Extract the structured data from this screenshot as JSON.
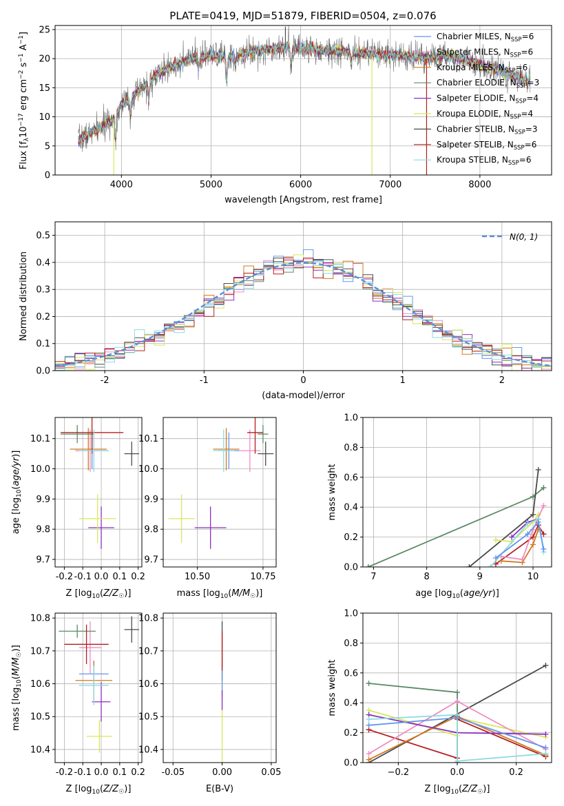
{
  "figure": {
    "title": "PLATE=0419, MJD=51879, FIBERID=0504, z=0.076"
  },
  "colors": {
    "Chabrier MILES": "#6495ed",
    "Salpeter MILES": "#f08cc0",
    "Kroupa MILES": "#d2781e",
    "Chabrier ELODIE": "#5a8a64",
    "Salpeter ELODIE": "#8b2fbf",
    "Kroupa ELODIE": "#d8e85a",
    "Chabrier STELIB": "#4a4a4a",
    "Salpeter STELIB": "#b41e1e",
    "Kroupa STELIB": "#8adbe0",
    "normal": "#5b8fd8"
  },
  "chart_data": [
    {
      "id": "spectrum",
      "type": "line",
      "xlabel": "wavelength [Angstrom, rest frame]",
      "ylabel": "Flux [f_λ 10^-17 erg cm^-2 s^-1 A^-1]",
      "xlim": [
        3260,
        8800
      ],
      "ylim": [
        0,
        25.7
      ],
      "xticks": [
        4000,
        5000,
        6000,
        7000,
        8000
      ],
      "yticks": [
        0,
        5,
        10,
        15,
        20,
        25
      ],
      "legend_position": "right",
      "legend": [
        {
          "model": "Chabrier MILES",
          "n": "6"
        },
        {
          "model": "Salpeter MILES",
          "n": "6"
        },
        {
          "model": "Kroupa MILES",
          "n": "6"
        },
        {
          "model": "Chabrier ELODIE",
          "n": "3"
        },
        {
          "model": "Salpeter ELODIE",
          "n": "4"
        },
        {
          "model": "Kroupa ELODIE",
          "n": "4"
        },
        {
          "model": "Chabrier STELIB",
          "n": "3"
        },
        {
          "model": "Salpeter STELIB",
          "n": "6"
        },
        {
          "model": "Kroupa STELIB",
          "n": "6"
        }
      ],
      "legend_prefix": ", N",
      "legend_sub": "SSP",
      "continuum_wavelength": [
        3520,
        3700,
        3900,
        4000,
        4200,
        4400,
        4600,
        4800,
        5000,
        5200,
        5400,
        5600,
        5800,
        6000,
        6200,
        6400,
        6600,
        6800,
        7000,
        7200,
        7400,
        7600,
        7800,
        8000,
        8200,
        8400,
        8560
      ],
      "continuum_flux": [
        6.0,
        7.5,
        9.5,
        12.0,
        14.5,
        17.2,
        19.0,
        20.0,
        20.5,
        20.3,
        21.0,
        21.5,
        22.0,
        21.8,
        21.5,
        21.3,
        21.0,
        20.8,
        20.5,
        20.5,
        20.0,
        20.5,
        20.0,
        19.0,
        18.0,
        17.0,
        16.0
      ],
      "absorption_lines": [
        {
          "wavelength": 3934,
          "depth": 4
        },
        {
          "wavelength": 4101,
          "depth": 3
        },
        {
          "wavelength": 4305,
          "depth": 3
        },
        {
          "wavelength": 4861,
          "depth": 2
        },
        {
          "wavelength": 5175,
          "depth": 4
        },
        {
          "wavelength": 5270,
          "depth": 2
        },
        {
          "wavelength": 5893,
          "depth": 3
        },
        {
          "wavelength": 6563,
          "depth": 2
        }
      ],
      "artifacts": [
        {
          "wavelength": 3915,
          "low": 0.0,
          "color": "Kroupa ELODIE"
        },
        {
          "wavelength": 6795,
          "low": 0.0,
          "color": "Kroupa ELODIE"
        },
        {
          "wavelength": 7405,
          "low": 0.0,
          "color": "Salpeter STELIB"
        },
        {
          "wavelength": 5830,
          "high": 25.5,
          "color": "Chabrier STELIB"
        }
      ]
    },
    {
      "id": "residuals",
      "type": "histogram",
      "xlabel": "(data-model)/error",
      "ylabel": "Normed distribution",
      "xlim": [
        -2.5,
        2.5
      ],
      "ylim": [
        0,
        0.55
      ],
      "xticks": [
        -2,
        -1,
        0,
        1,
        2
      ],
      "yticks": [
        0.0,
        0.1,
        0.2,
        0.3,
        0.4,
        0.5
      ],
      "bin_width": 0.1,
      "legend_position": "top-right",
      "normal_label": "N(0, 1)",
      "series_seed_note": "9 step histograms around N(0,1)"
    },
    {
      "id": "age_vs_Z",
      "type": "errorbar",
      "xlabel": "Z [log10(Z/Z_sun)]",
      "ylabel": "age [log10(age/yr)]",
      "xlim": [
        -0.25,
        0.22
      ],
      "ylim": [
        9.675,
        10.17
      ],
      "xticks": [
        -0.2,
        -0.1,
        0.0,
        0.1,
        0.2
      ],
      "yticks": [
        9.7,
        9.8,
        9.9,
        10.0,
        10.1
      ],
      "points": [
        {
          "model": "Chabrier MILES",
          "x": -0.05,
          "xerr": 0.09,
          "y": 10.06,
          "yerr": 0.06
        },
        {
          "model": "Salpeter MILES",
          "x": -0.06,
          "xerr": 0.08,
          "y": 10.06,
          "yerr": 0.07
        },
        {
          "model": "Kroupa MILES",
          "x": -0.07,
          "xerr": 0.1,
          "y": 10.065,
          "yerr": 0.07
        },
        {
          "model": "Chabrier ELODIE",
          "x": -0.13,
          "xerr": 0.09,
          "y": 10.115,
          "yerr": 0.03
        },
        {
          "model": "Salpeter ELODIE",
          "x": 0.0,
          "xerr": 0.07,
          "y": 9.805,
          "yerr": 0.07
        },
        {
          "model": "Kroupa ELODIE",
          "x": -0.02,
          "xerr": 0.1,
          "y": 9.835,
          "yerr": 0.08
        },
        {
          "model": "Chabrier STELIB",
          "x": 0.165,
          "xerr": 0.04,
          "y": 10.05,
          "yerr": 0.04
        },
        {
          "model": "Salpeter STELIB",
          "x": -0.05,
          "xerr": 0.17,
          "y": 10.12,
          "yerr": 0.07
        },
        {
          "model": "Kroupa STELIB",
          "x": -0.04,
          "xerr": 0.08,
          "y": 10.06,
          "yerr": 0.07
        }
      ]
    },
    {
      "id": "age_vs_mass",
      "type": "errorbar",
      "xlabel": "mass [log10(M/M_sun)]",
      "ylabel": "",
      "xlim": [
        10.37,
        10.8
      ],
      "ylim": [
        9.675,
        10.17
      ],
      "xticks": [
        10.5,
        10.75
      ],
      "yticks": [
        9.7,
        9.8,
        9.9,
        10.0,
        10.1
      ],
      "points": [
        {
          "model": "Chabrier MILES",
          "x": 10.62,
          "xerr": 0.04,
          "y": 10.06,
          "yerr": 0.06
        },
        {
          "model": "Salpeter MILES",
          "x": 10.7,
          "xerr": 0.04,
          "y": 10.06,
          "yerr": 0.07
        },
        {
          "model": "Kroupa MILES",
          "x": 10.61,
          "xerr": 0.05,
          "y": 10.065,
          "yerr": 0.07
        },
        {
          "model": "Chabrier ELODIE",
          "x": 10.75,
          "xerr": 0.02,
          "y": 10.115,
          "yerr": 0.03
        },
        {
          "model": "Salpeter ELODIE",
          "x": 10.55,
          "xerr": 0.06,
          "y": 9.805,
          "yerr": 0.07
        },
        {
          "model": "Kroupa ELODIE",
          "x": 10.44,
          "xerr": 0.05,
          "y": 9.835,
          "yerr": 0.08
        },
        {
          "model": "Chabrier STELIB",
          "x": 10.76,
          "xerr": 0.03,
          "y": 10.05,
          "yerr": 0.04
        },
        {
          "model": "Salpeter STELIB",
          "x": 10.72,
          "xerr": 0.03,
          "y": 10.12,
          "yerr": 0.07
        },
        {
          "model": "Kroupa STELIB",
          "x": 10.6,
          "xerr": 0.04,
          "y": 10.06,
          "yerr": 0.07
        }
      ]
    },
    {
      "id": "weight_vs_age",
      "type": "line",
      "xlabel": "age [log10(age/yr)]",
      "ylabel": "mass weight",
      "xlim": [
        6.8,
        10.35
      ],
      "ylim": [
        0,
        1.0
      ],
      "xticks": [
        7,
        8,
        9,
        10
      ],
      "yticks": [
        0.0,
        0.2,
        0.4,
        0.6,
        0.8,
        1.0
      ],
      "series": [
        {
          "model": "Chabrier ELODIE",
          "x": [
            6.9,
            10.0,
            10.2
          ],
          "y": [
            0.0,
            0.47,
            0.53
          ]
        },
        {
          "model": "Chabrier STELIB",
          "x": [
            8.8,
            10.0,
            10.1
          ],
          "y": [
            0.0,
            0.35,
            0.65
          ]
        },
        {
          "model": "Salpeter STELIB",
          "x": [
            9.3,
            10.0,
            10.1,
            10.2
          ],
          "y": [
            0.02,
            0.2,
            0.28,
            0.22
          ]
        },
        {
          "model": "Kroupa ELODIE",
          "x": [
            9.3,
            9.6,
            10.0,
            10.1
          ],
          "y": [
            0.18,
            0.17,
            0.3,
            0.35
          ]
        },
        {
          "model": "Kroupa MILES",
          "x": [
            9.4,
            9.8,
            10.0,
            10.1
          ],
          "y": [
            0.04,
            0.03,
            0.15,
            0.25
          ]
        },
        {
          "model": "Salpeter MILES",
          "x": [
            9.4,
            9.8,
            10.0,
            10.2
          ],
          "y": [
            0.07,
            0.05,
            0.25,
            0.41
          ]
        },
        {
          "model": "Salpeter ELODIE",
          "x": [
            9.6,
            9.9,
            10.1
          ],
          "y": [
            0.2,
            0.3,
            0.32
          ]
        },
        {
          "model": "Kroupa STELIB",
          "x": [
            9.2,
            9.9,
            10.1,
            10.2
          ],
          "y": [
            0.0,
            0.29,
            0.32,
            0.1
          ]
        },
        {
          "model": "Chabrier MILES",
          "x": [
            9.3,
            9.9,
            10.1,
            10.2
          ],
          "y": [
            0.06,
            0.22,
            0.3,
            0.12
          ]
        }
      ]
    },
    {
      "id": "mass_vs_Z",
      "type": "errorbar",
      "xlabel": "Z [log10(Z/Z_sun)]",
      "ylabel": "mass [log10(M/M_sun)]",
      "xlim": [
        -0.25,
        0.22
      ],
      "ylim": [
        10.36,
        10.815
      ],
      "xticks": [
        -0.2,
        -0.1,
        0.0,
        0.1,
        0.2
      ],
      "yticks": [
        10.4,
        10.5,
        10.6,
        10.7,
        10.8
      ],
      "points": [
        {
          "model": "Chabrier MILES",
          "x": -0.04,
          "xerr": 0.08,
          "y": 10.63,
          "yerr": 0.04
        },
        {
          "model": "Salpeter MILES",
          "x": -0.06,
          "xerr": 0.06,
          "y": 10.71,
          "yerr": 0.08
        },
        {
          "model": "Kroupa MILES",
          "x": -0.04,
          "xerr": 0.1,
          "y": 10.61,
          "yerr": 0.06
        },
        {
          "model": "Chabrier ELODIE",
          "x": -0.13,
          "xerr": 0.1,
          "y": 10.76,
          "yerr": 0.02
        },
        {
          "model": "Salpeter ELODIE",
          "x": 0.0,
          "xerr": 0.05,
          "y": 10.545,
          "yerr": 0.06
        },
        {
          "model": "Kroupa ELODIE",
          "x": -0.01,
          "xerr": 0.07,
          "y": 10.44,
          "yerr": 0.05
        },
        {
          "model": "Chabrier STELIB",
          "x": 0.165,
          "xerr": 0.04,
          "y": 10.765,
          "yerr": 0.04
        },
        {
          "model": "Salpeter STELIB",
          "x": -0.08,
          "xerr": 0.12,
          "y": 10.72,
          "yerr": 0.06
        },
        {
          "model": "Kroupa STELIB",
          "x": -0.04,
          "xerr": 0.08,
          "y": 10.595,
          "yerr": 0.06
        }
      ]
    },
    {
      "id": "mass_vs_ebv",
      "type": "errorbar",
      "xlabel": "E(B-V)",
      "ylabel": "",
      "xlim": [
        -0.06,
        0.055
      ],
      "ylim": [
        10.36,
        10.815
      ],
      "xticks": [
        -0.05,
        0.0,
        0.05
      ],
      "yticks": [
        10.4,
        10.5,
        10.6,
        10.7,
        10.8
      ],
      "points": [
        {
          "model": "Kroupa ELODIE",
          "x": 0.0,
          "xerr": 0.0,
          "y": 10.5,
          "yerr": 0.14
        },
        {
          "model": "Chabrier STELIB",
          "x": 0.0,
          "xerr": 0.0,
          "y": 10.7,
          "yerr": 0.09
        },
        {
          "model": "Salpeter STELIB",
          "x": 0.0,
          "xerr": 0.0,
          "y": 10.7,
          "yerr": 0.06
        },
        {
          "model": "Chabrier MILES",
          "x": 0.0,
          "xerr": 0.0,
          "y": 10.6,
          "yerr": 0.04
        },
        {
          "model": "Salpeter ELODIE",
          "x": 0.0,
          "xerr": 0.0,
          "y": 10.55,
          "yerr": 0.03
        }
      ]
    },
    {
      "id": "weight_vs_Z",
      "type": "line",
      "xlabel": "Z [log10(Z/Z_sun)]",
      "ylabel": "mass weight",
      "xlim": [
        -0.32,
        0.32
      ],
      "ylim": [
        0,
        1.0
      ],
      "xticks": [
        -0.2,
        0.0,
        0.2
      ],
      "yticks": [
        0.0,
        0.2,
        0.4,
        0.6,
        0.8,
        1.0
      ],
      "series": [
        {
          "model": "Chabrier ELODIE",
          "x": [
            -0.3,
            0.0,
            0.0
          ],
          "y": [
            0.53,
            0.47,
            0.0
          ]
        },
        {
          "model": "Chabrier STELIB",
          "x": [
            -0.3,
            0.3
          ],
          "y": [
            0.0,
            0.65
          ]
        },
        {
          "model": "Salpeter STELIB",
          "x": [
            -0.3,
            0.0,
            0.0,
            0.3
          ],
          "y": [
            0.22,
            0.03,
            0.29,
            0.04
          ]
        },
        {
          "model": "Kroupa ELODIE",
          "x": [
            -0.3,
            0.0,
            0.0,
            0.3
          ],
          "y": [
            0.35,
            0.18,
            0.3,
            0.17
          ]
        },
        {
          "model": "Kroupa MILES",
          "x": [
            -0.3,
            0.0,
            0.3
          ],
          "y": [
            0.02,
            0.31,
            0.05
          ]
        },
        {
          "model": "Salpeter MILES",
          "x": [
            -0.3,
            0.0,
            0.3
          ],
          "y": [
            0.06,
            0.41,
            0.09
          ]
        },
        {
          "model": "Salpeter ELODIE",
          "x": [
            -0.3,
            0.0,
            0.3
          ],
          "y": [
            0.32,
            0.2,
            0.19
          ]
        },
        {
          "model": "Kroupa STELIB",
          "x": [
            -0.3,
            0.0,
            0.0,
            0.3
          ],
          "y": [
            0.29,
            0.32,
            0.01,
            0.06
          ]
        },
        {
          "model": "Chabrier MILES",
          "x": [
            -0.3,
            0.0,
            0.3
          ],
          "y": [
            0.25,
            0.3,
            0.1
          ]
        }
      ]
    }
  ]
}
